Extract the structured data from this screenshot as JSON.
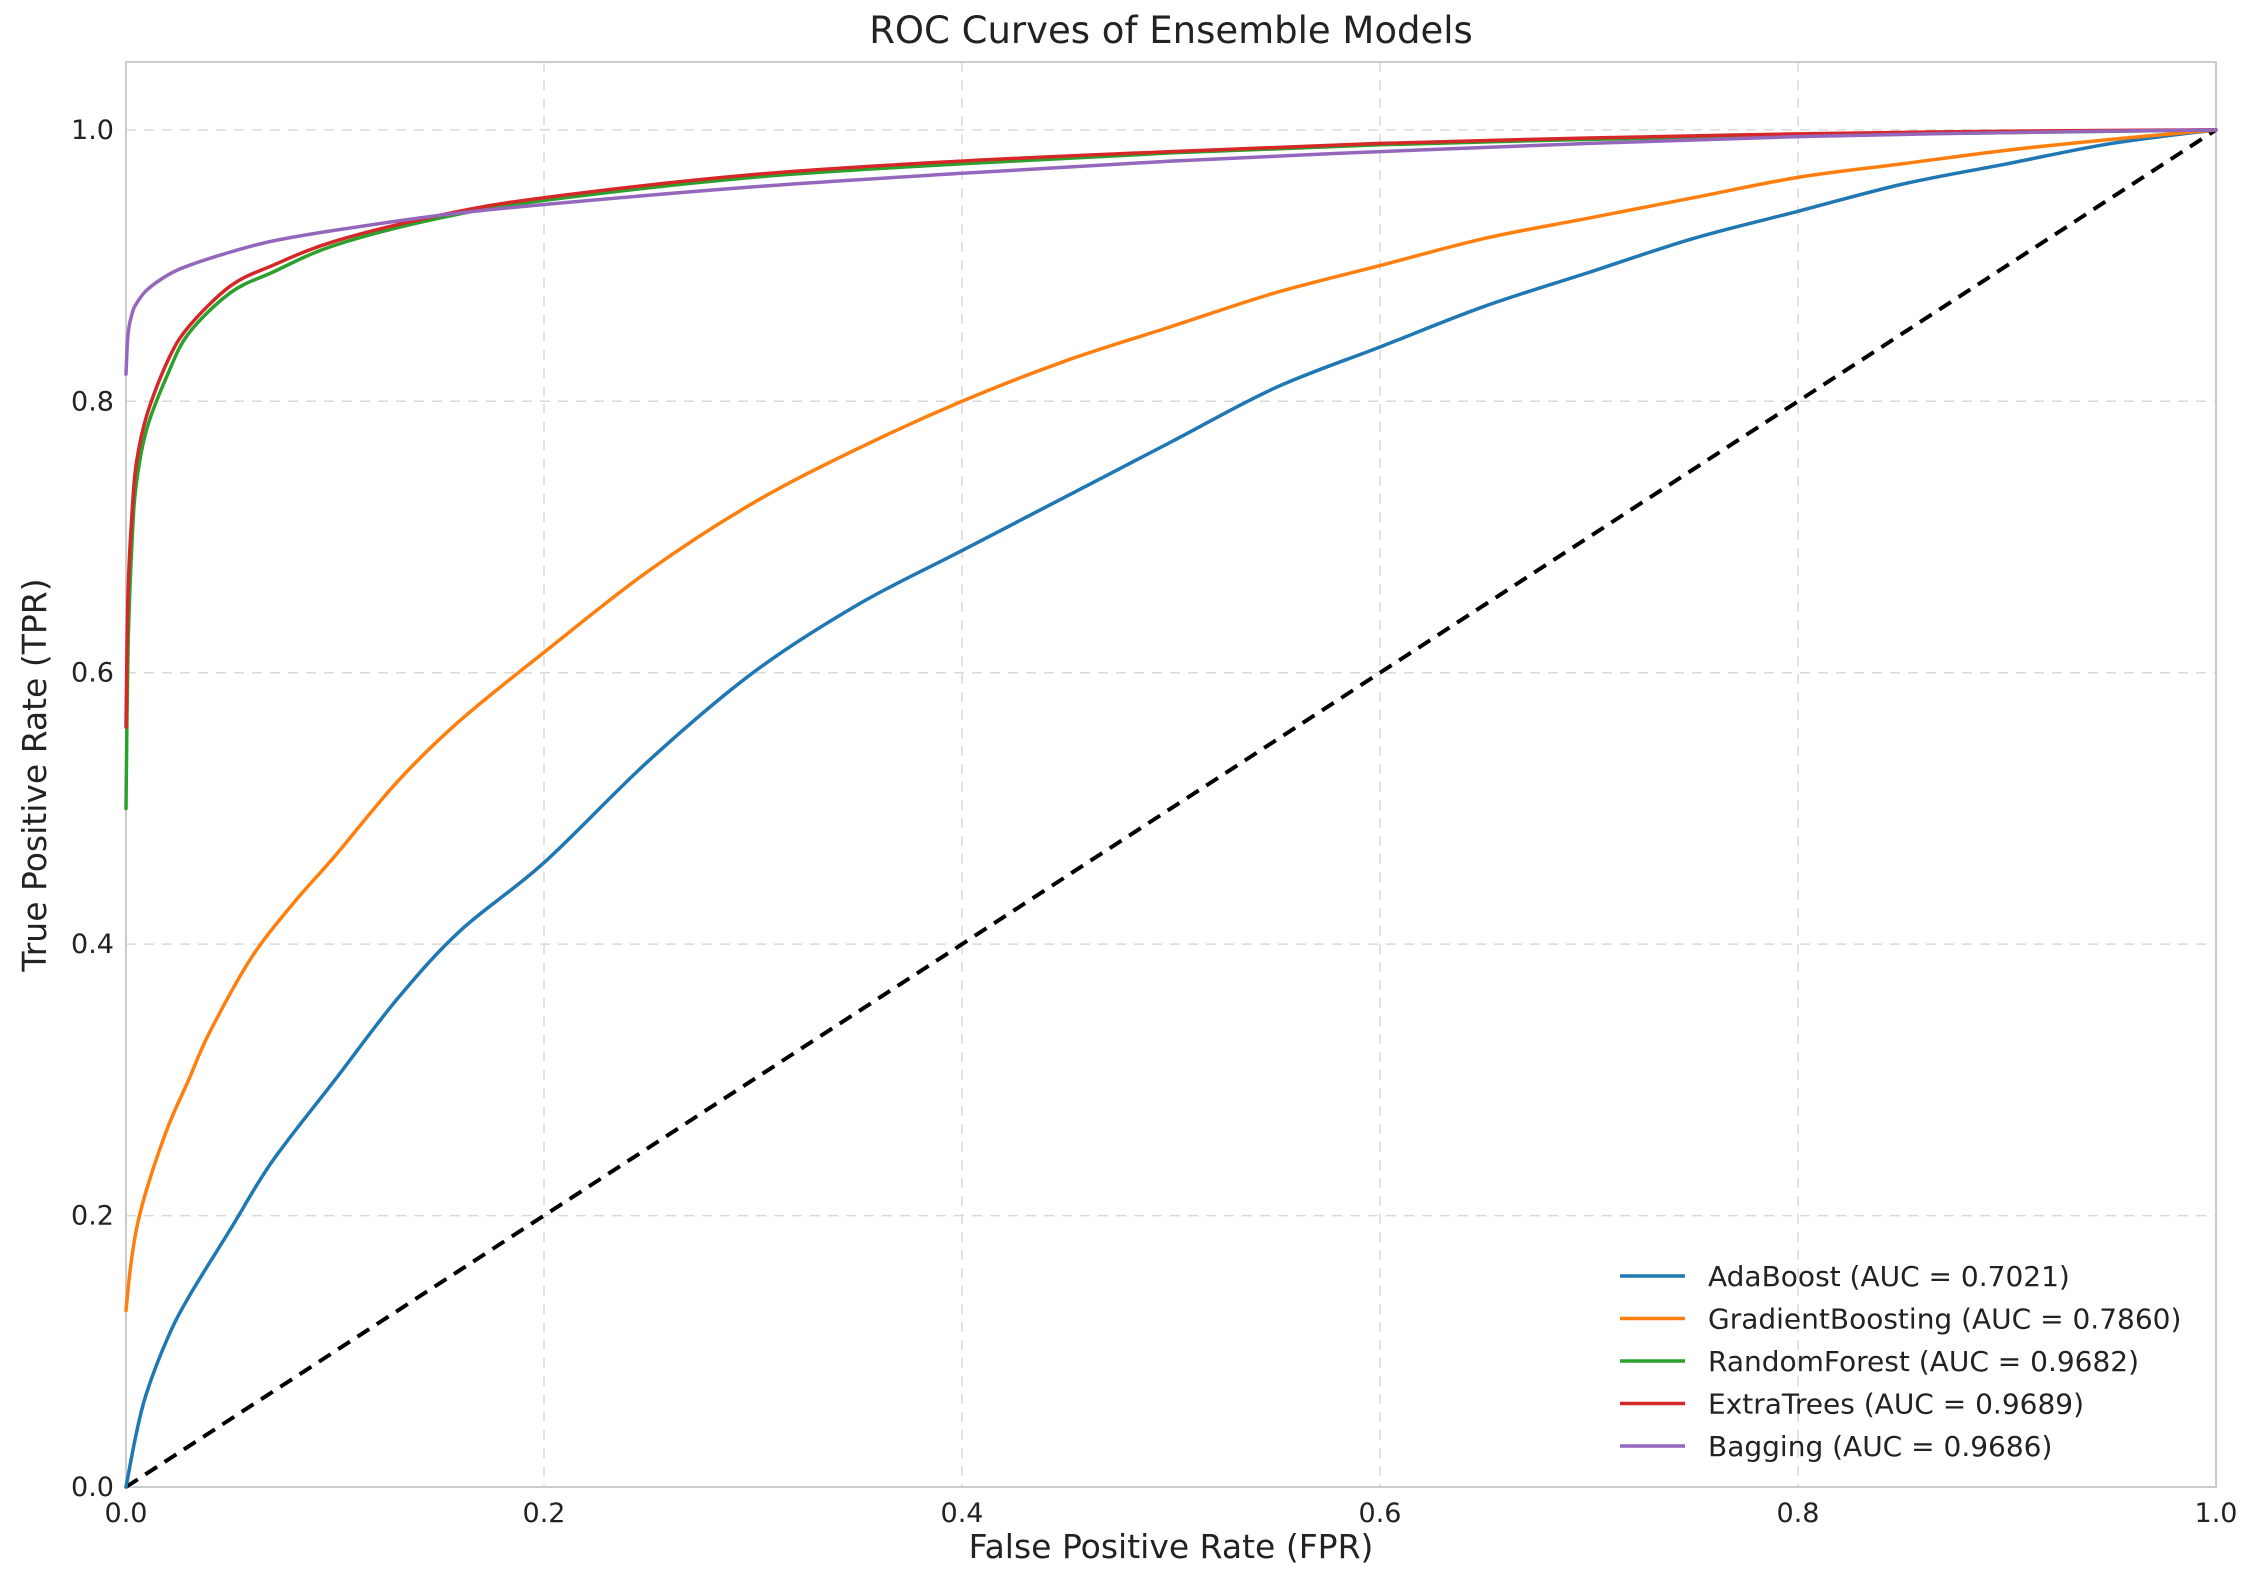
{
  "chart_data": {
    "type": "line",
    "title": "ROC Curves of Ensemble Models",
    "xlabel": "False Positive Rate (FPR)",
    "ylabel": "True Positive Rate (TPR)",
    "xlim": [
      0,
      1
    ],
    "ylim": [
      0,
      1.05
    ],
    "xticks": [
      0.0,
      0.2,
      0.4,
      0.6,
      0.8,
      1.0
    ],
    "yticks": [
      0.0,
      0.2,
      0.4,
      0.6,
      0.8,
      1.0
    ],
    "xtick_labels": [
      "0.0",
      "0.2",
      "0.4",
      "0.6",
      "0.8",
      "1.0"
    ],
    "ytick_labels": [
      "0.0",
      "0.2",
      "0.4",
      "0.6",
      "0.8",
      "1.0"
    ],
    "grid": true,
    "legend_position": "bottom-right",
    "series": [
      {
        "name": "AdaBoost",
        "label": "AdaBoost (AUC = 0.7021)",
        "auc": 0.7021,
        "color": "#1f77b4",
        "x": [
          0,
          0.005,
          0.01,
          0.02,
          0.03,
          0.05,
          0.07,
          0.1,
          0.13,
          0.16,
          0.2,
          0.25,
          0.3,
          0.35,
          0.4,
          0.45,
          0.5,
          0.55,
          0.6,
          0.65,
          0.7,
          0.75,
          0.8,
          0.85,
          0.9,
          0.95,
          1.0
        ],
        "y": [
          0,
          0.04,
          0.07,
          0.11,
          0.14,
          0.19,
          0.24,
          0.3,
          0.36,
          0.41,
          0.46,
          0.535,
          0.6,
          0.65,
          0.69,
          0.73,
          0.77,
          0.81,
          0.84,
          0.87,
          0.895,
          0.92,
          0.94,
          0.96,
          0.975,
          0.99,
          1.0
        ]
      },
      {
        "name": "GradientBoosting",
        "label": "GradientBoosting (AUC = 0.7860)",
        "auc": 0.786,
        "color": "#ff7f0e",
        "x": [
          0,
          0.002,
          0.005,
          0.01,
          0.02,
          0.03,
          0.04,
          0.06,
          0.08,
          0.1,
          0.13,
          0.16,
          0.2,
          0.25,
          0.3,
          0.35,
          0.4,
          0.45,
          0.5,
          0.55,
          0.6,
          0.65,
          0.7,
          0.75,
          0.8,
          0.85,
          0.9,
          0.95,
          1.0
        ],
        "y": [
          0.13,
          0.16,
          0.19,
          0.22,
          0.265,
          0.3,
          0.335,
          0.39,
          0.43,
          0.465,
          0.52,
          0.565,
          0.615,
          0.675,
          0.725,
          0.765,
          0.8,
          0.83,
          0.855,
          0.88,
          0.9,
          0.92,
          0.935,
          0.95,
          0.965,
          0.975,
          0.985,
          0.993,
          1.0
        ]
      },
      {
        "name": "RandomForest",
        "label": "RandomForest (AUC = 0.9682)",
        "auc": 0.9682,
        "color": "#2ca02c",
        "x": [
          0,
          0.001,
          0.003,
          0.005,
          0.01,
          0.02,
          0.03,
          0.05,
          0.07,
          0.1,
          0.15,
          0.2,
          0.3,
          0.4,
          0.5,
          0.6,
          0.7,
          0.8,
          0.9,
          1.0
        ],
        "y": [
          0.5,
          0.62,
          0.7,
          0.74,
          0.78,
          0.82,
          0.85,
          0.88,
          0.895,
          0.915,
          0.935,
          0.948,
          0.965,
          0.975,
          0.983,
          0.989,
          0.993,
          0.996,
          0.998,
          1.0
        ]
      },
      {
        "name": "ExtraTrees",
        "label": "ExtraTrees (AUC = 0.9689)",
        "auc": 0.9689,
        "color": "#d62728",
        "x": [
          0,
          0.001,
          0.003,
          0.005,
          0.01,
          0.02,
          0.03,
          0.05,
          0.07,
          0.1,
          0.15,
          0.2,
          0.3,
          0.4,
          0.5,
          0.6,
          0.7,
          0.8,
          0.9,
          1.0
        ],
        "y": [
          0.56,
          0.66,
          0.72,
          0.755,
          0.79,
          0.83,
          0.855,
          0.885,
          0.9,
          0.918,
          0.937,
          0.95,
          0.967,
          0.977,
          0.984,
          0.99,
          0.994,
          0.997,
          0.999,
          1.0
        ]
      },
      {
        "name": "Bagging",
        "label": "Bagging (AUC = 0.9686)",
        "auc": 0.9686,
        "color": "#9467bd",
        "x": [
          0,
          0.001,
          0.003,
          0.005,
          0.01,
          0.02,
          0.03,
          0.05,
          0.07,
          0.1,
          0.15,
          0.2,
          0.3,
          0.4,
          0.5,
          0.6,
          0.7,
          0.8,
          0.9,
          1.0
        ],
        "y": [
          0.82,
          0.85,
          0.865,
          0.872,
          0.882,
          0.893,
          0.9,
          0.91,
          0.918,
          0.926,
          0.937,
          0.945,
          0.958,
          0.968,
          0.977,
          0.984,
          0.99,
          0.995,
          0.998,
          1.0
        ]
      }
    ],
    "reference_line": {
      "name": "chance",
      "style": "dashed",
      "color": "#000000",
      "x": [
        0,
        1
      ],
      "y": [
        0,
        1
      ]
    }
  }
}
